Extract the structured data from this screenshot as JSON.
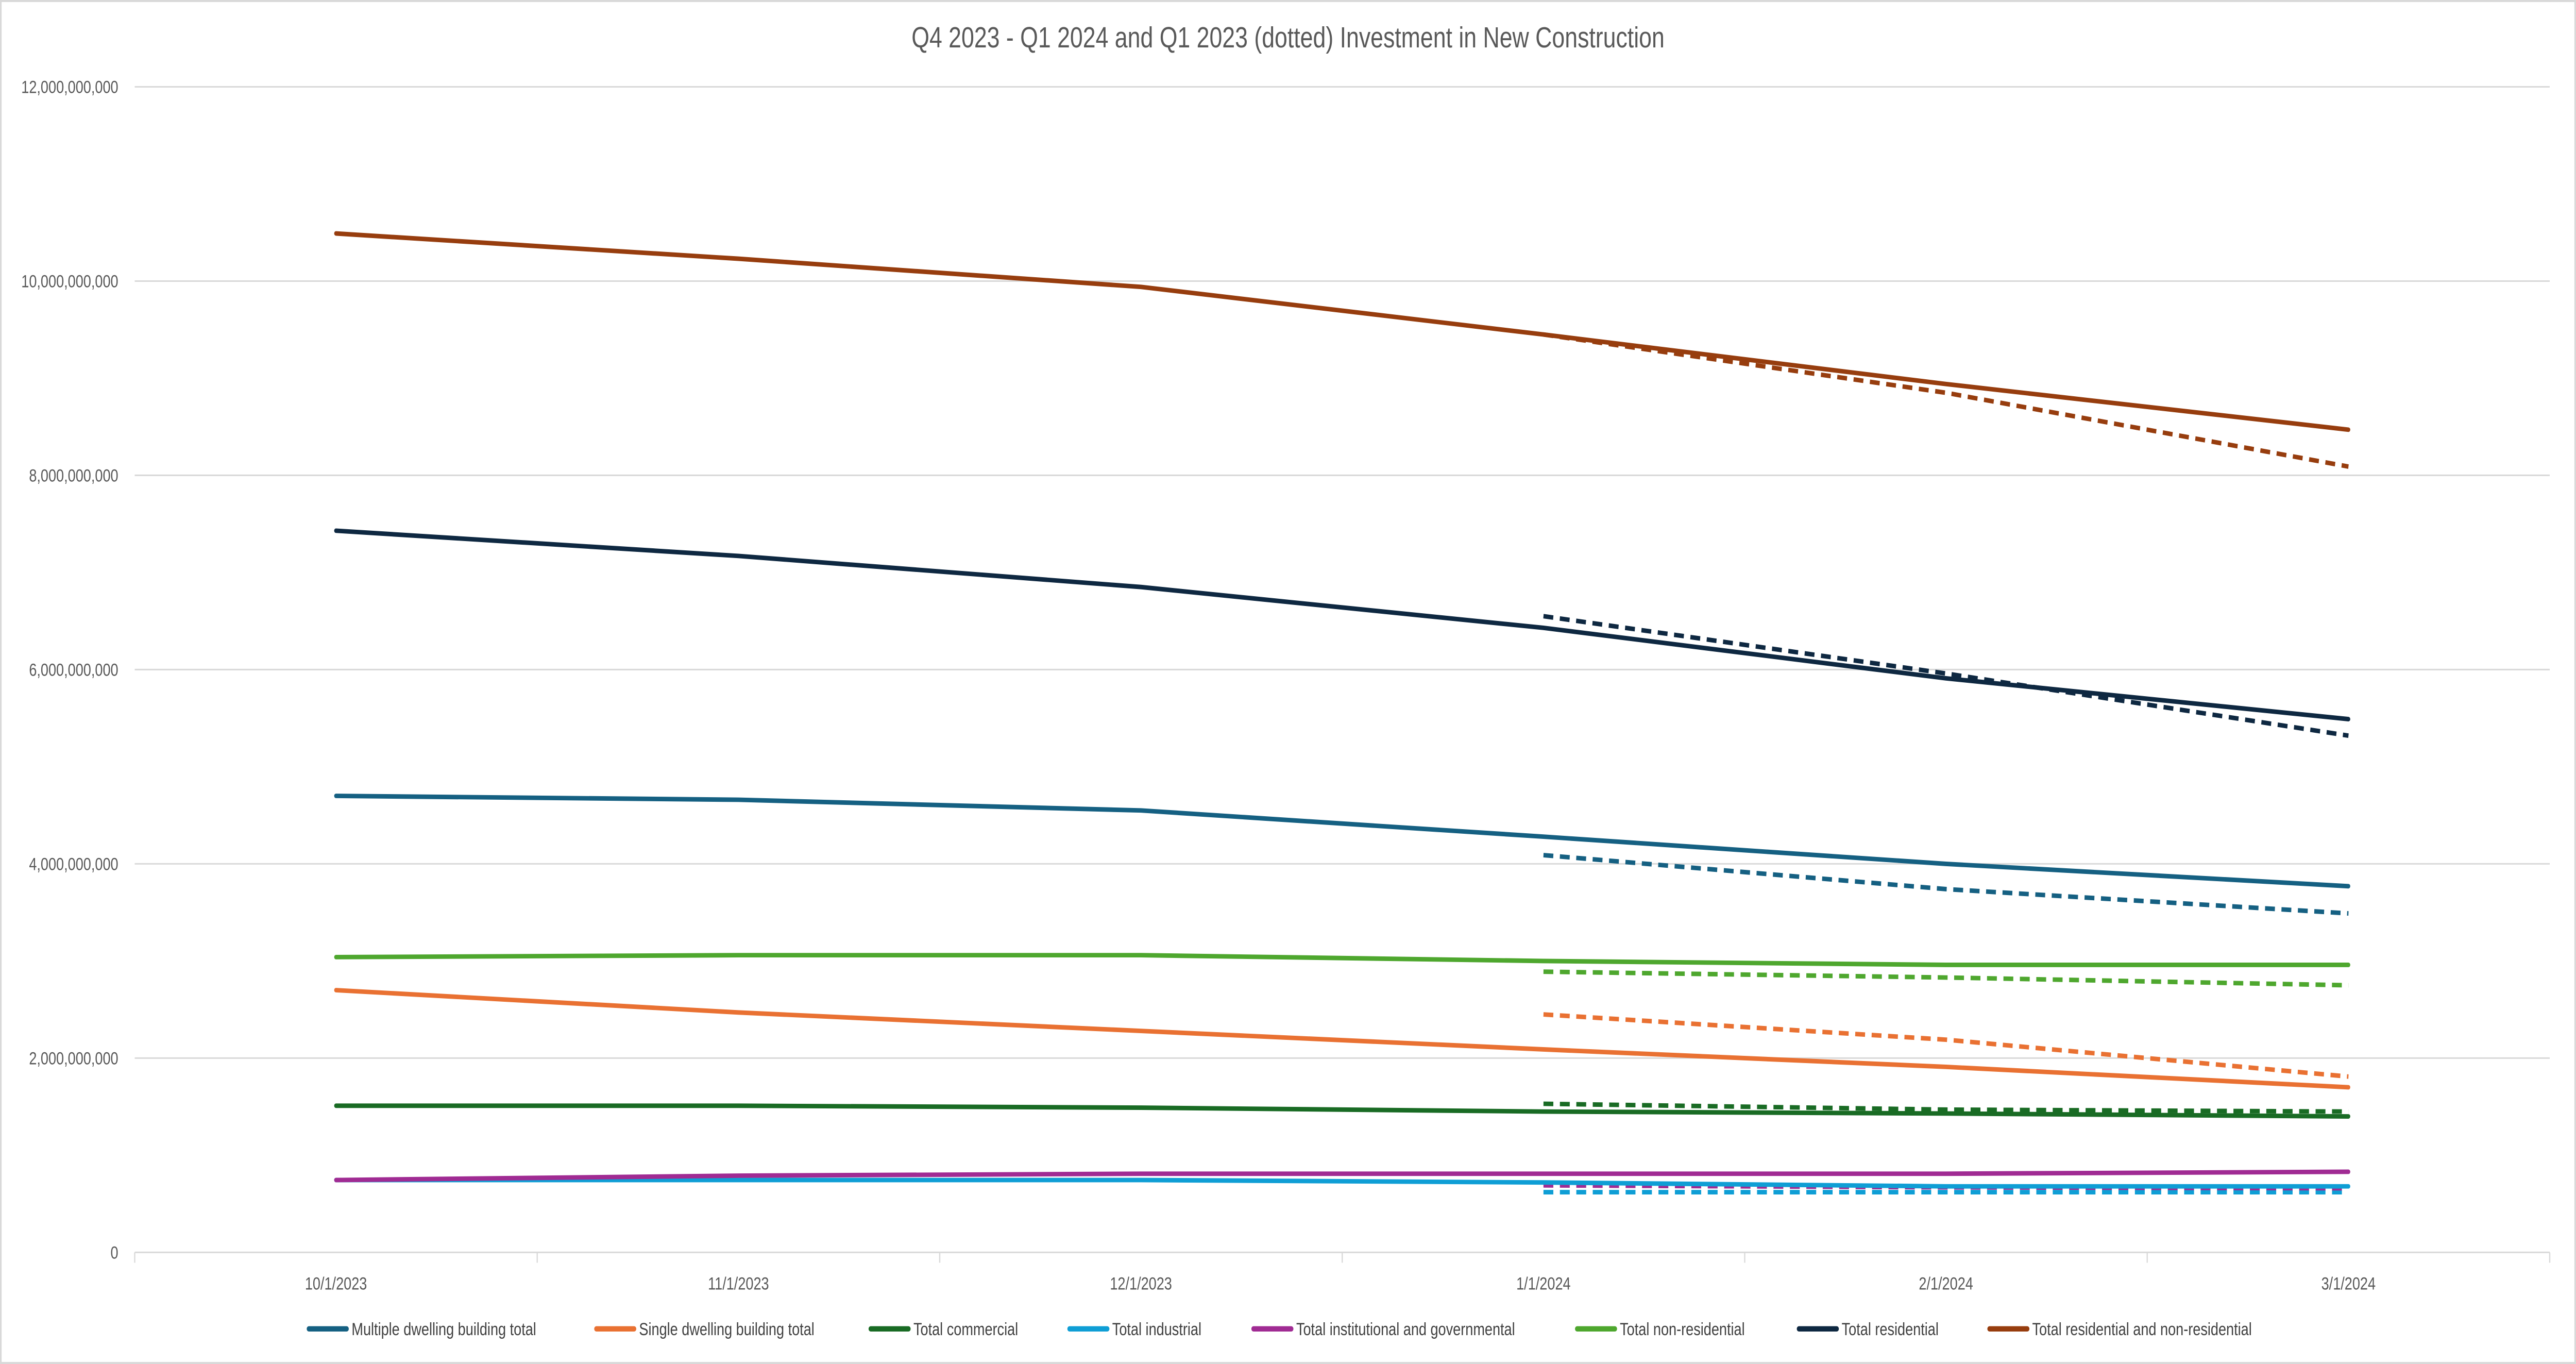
{
  "chart_data": {
    "type": "line",
    "title": "Q4 2023 - Q1 2024 and Q1 2023 (dotted) Investment in New Construction",
    "xlabel": "",
    "ylabel": "",
    "categories": [
      "10/1/2023",
      "11/1/2023",
      "12/1/2023",
      "1/1/2024",
      "2/1/2024",
      "3/1/2024"
    ],
    "dotted_categories": [
      "1/1/2024",
      "2/1/2024",
      "3/1/2024"
    ],
    "ylim": [
      0,
      12000000000
    ],
    "yticks": [
      0,
      2000000000,
      4000000000,
      6000000000,
      8000000000,
      10000000000,
      12000000000
    ],
    "ytick_labels": [
      "0",
      "2,000,000,000",
      "4,000,000,000",
      "6,000,000,000",
      "8,000,000,000",
      "10,000,000,000",
      "12,000,000,000"
    ],
    "grid": "horizontal",
    "legend": "bottom",
    "series": [
      {
        "name": "Multiple dwelling building total",
        "color": "#156082",
        "values": [
          4700000000,
          4660000000,
          4550000000,
          4280000000,
          4000000000,
          3770000000
        ],
        "dotted_values": [
          4090000000,
          3740000000,
          3490000000
        ]
      },
      {
        "name": "Single dwelling building total",
        "color": "#E97132",
        "values": [
          2700000000,
          2470000000,
          2280000000,
          2090000000,
          1910000000,
          1700000000
        ],
        "dotted_values": [
          2450000000,
          2190000000,
          1810000000
        ]
      },
      {
        "name": "Total commercial",
        "color": "#196B24",
        "values": [
          1510000000,
          1510000000,
          1490000000,
          1450000000,
          1430000000,
          1400000000
        ],
        "dotted_values": [
          1530000000,
          1470000000,
          1450000000
        ]
      },
      {
        "name": "Total industrial",
        "color": "#0F9ED5",
        "values": [
          745000000,
          745000000,
          745000000,
          720000000,
          680000000,
          680000000
        ],
        "dotted_values": [
          620000000,
          620000000,
          620000000
        ]
      },
      {
        "name": "Total institutional and governmental",
        "color": "#A02B93",
        "values": [
          745000000,
          790000000,
          810000000,
          810000000,
          810000000,
          830000000
        ],
        "dotted_values": [
          690000000,
          670000000,
          660000000
        ]
      },
      {
        "name": "Total non-residential",
        "color": "#4EA72E",
        "values": [
          3040000000,
          3060000000,
          3060000000,
          3000000000,
          2960000000,
          2960000000
        ],
        "dotted_values": [
          2890000000,
          2830000000,
          2750000000
        ]
      },
      {
        "name": "Total residential",
        "color": "#0E2841",
        "values": [
          7430000000,
          7170000000,
          6850000000,
          6430000000,
          5910000000,
          5490000000
        ],
        "dotted_values": [
          6550000000,
          5960000000,
          5320000000
        ]
      },
      {
        "name": "Total residential and non-residential",
        "color": "#973D0E",
        "values": [
          10490000000,
          10230000000,
          9940000000,
          9450000000,
          8940000000,
          8470000000
        ],
        "dotted_values": [
          9450000000,
          8850000000,
          8090000000
        ]
      }
    ]
  }
}
